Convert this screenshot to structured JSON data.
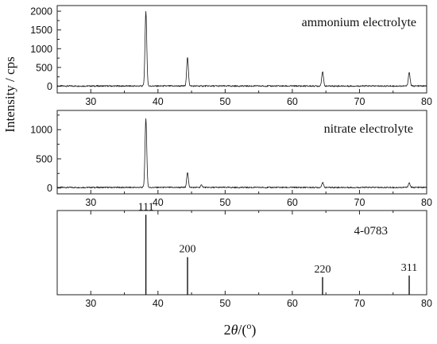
{
  "chart_data": [
    {
      "type": "line",
      "title": "",
      "annotation": "ammonium electrolyte",
      "xlim": [
        25,
        80
      ],
      "ylim": [
        -180,
        2150
      ],
      "x_ticks": [
        30,
        40,
        50,
        60,
        70,
        80
      ],
      "y_ticks": [
        0,
        500,
        1000,
        1500,
        2000
      ],
      "baseline": 5,
      "series": [
        {
          "peaks": [
            {
              "x": 38.2,
              "y": 1980
            },
            {
              "x": 44.4,
              "y": 760
            },
            {
              "x": 64.5,
              "y": 390
            },
            {
              "x": 77.4,
              "y": 370
            }
          ]
        }
      ]
    },
    {
      "type": "line",
      "title": "",
      "annotation": "nitrate electrolyte",
      "xlim": [
        25,
        80
      ],
      "ylim": [
        -100,
        1330
      ],
      "x_ticks": [
        30,
        40,
        50,
        60,
        70,
        80
      ],
      "y_ticks": [
        0,
        500,
        1000
      ],
      "baseline": 10,
      "series": [
        {
          "peaks": [
            {
              "x": 38.2,
              "y": 1180
            },
            {
              "x": 44.4,
              "y": 260
            },
            {
              "x": 46.5,
              "y": 50
            },
            {
              "x": 64.5,
              "y": 95
            },
            {
              "x": 77.4,
              "y": 90
            }
          ]
        }
      ]
    },
    {
      "type": "bar",
      "title": "",
      "annotation": "4-0783",
      "xlim": [
        25,
        80
      ],
      "ylim": [
        0,
        100
      ],
      "x_ticks": [
        30,
        40,
        50,
        60,
        70,
        80
      ],
      "reflections": [
        {
          "x": 38.2,
          "label": "111",
          "intensity": 100
        },
        {
          "x": 44.4,
          "label": "200",
          "intensity": 47
        },
        {
          "x": 64.5,
          "label": "220",
          "intensity": 22
        },
        {
          "x": 77.4,
          "label": "311",
          "intensity": 24
        }
      ]
    }
  ],
  "axes": {
    "ylabel": "Intensity / cps",
    "xlabel_prefix": "2",
    "xlabel_symbol": "θ",
    "xlabel_suffix": "/(",
    "xlabel_unit": "o",
    "xlabel_close": ")"
  }
}
